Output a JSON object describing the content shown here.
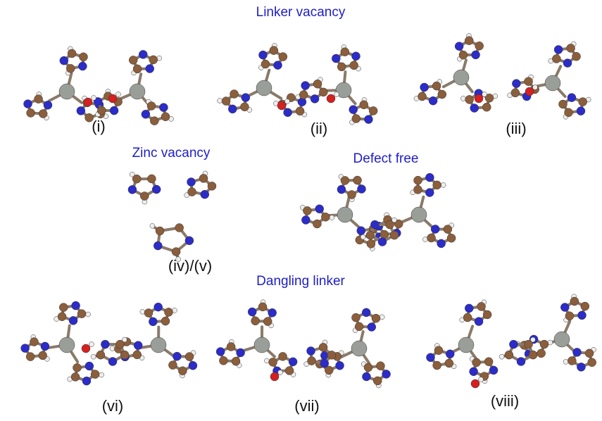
{
  "sections": [
    {
      "title": "Linker vacancy",
      "labels": [
        "(i)",
        "(ii)",
        "(iii)"
      ]
    },
    {
      "title": "Zinc vacancy",
      "labels": [
        "(iv)/(v)"
      ]
    },
    {
      "title": "Defect free",
      "labels": []
    },
    {
      "title": "Dangling linker",
      "labels": [
        "(vi)",
        "(vii)",
        "(viii)"
      ]
    }
  ]
}
